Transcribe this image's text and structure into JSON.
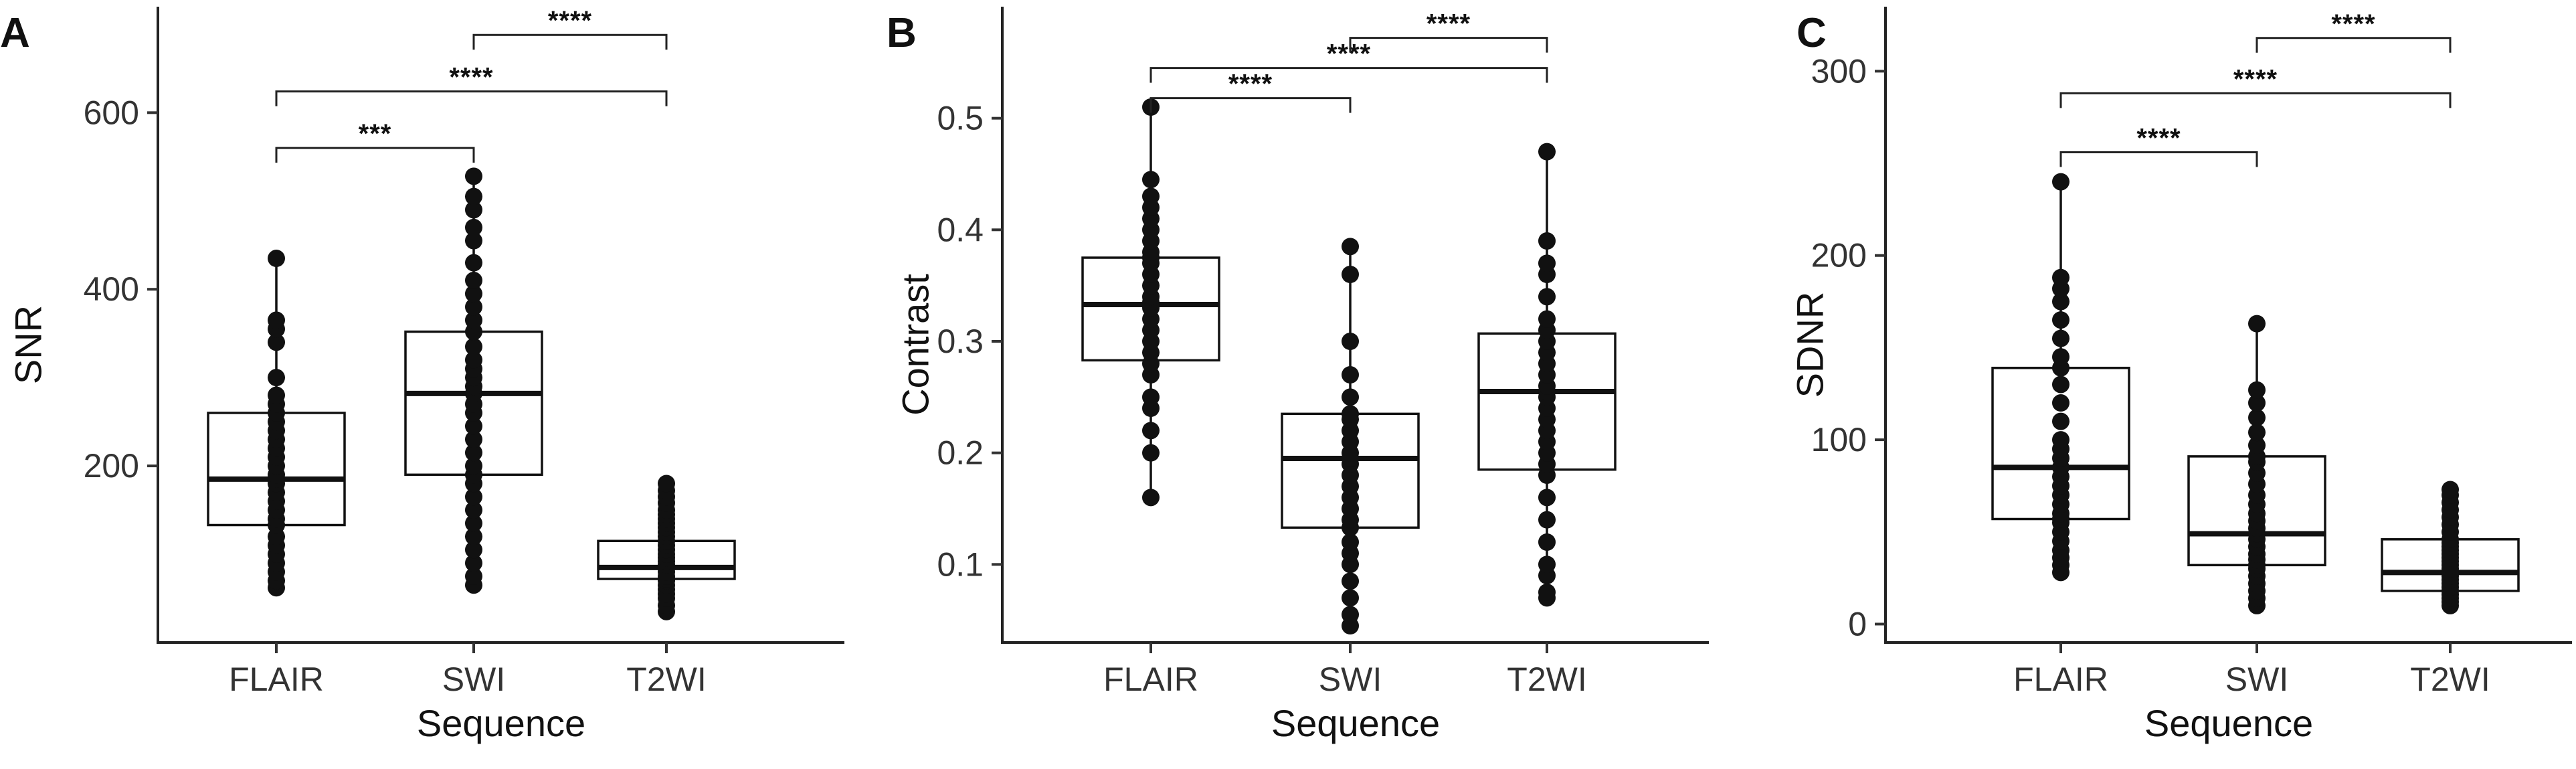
{
  "chart_data": [
    {
      "type": "box",
      "panel": "A",
      "xlabel": "Sequence",
      "ylabel": "SNR",
      "categories": [
        "FLAIR",
        "SWI",
        "T2WI"
      ],
      "ylim": [
        0,
        720
      ],
      "yticks": [
        200,
        400,
        600
      ],
      "boxes": [
        {
          "category": "FLAIR",
          "whisker_low": 62,
          "q1": 133,
          "median": 185,
          "q3": 260,
          "whisker_high": 435
        },
        {
          "category": "SWI",
          "whisker_low": 65,
          "q1": 190,
          "median": 282,
          "q3": 352,
          "whisker_high": 528
        },
        {
          "category": "T2WI",
          "whisker_low": 35,
          "q1": 72,
          "median": 85,
          "q3": 115,
          "whisker_high": 180
        }
      ],
      "points": [
        [
          62,
          70,
          80,
          90,
          100,
          110,
          120,
          133,
          140,
          150,
          160,
          170,
          180,
          185,
          190,
          200,
          210,
          220,
          230,
          240,
          250,
          260,
          270,
          280,
          300,
          340,
          355,
          365,
          435
        ],
        [
          65,
          75,
          90,
          105,
          120,
          135,
          150,
          165,
          180,
          190,
          200,
          215,
          230,
          245,
          260,
          270,
          282,
          290,
          300,
          310,
          320,
          335,
          352,
          365,
          380,
          395,
          410,
          430,
          455,
          470,
          490,
          505,
          528
        ],
        [
          35,
          42,
          50,
          55,
          60,
          65,
          70,
          72,
          75,
          80,
          85,
          88,
          92,
          96,
          100,
          105,
          110,
          115,
          120,
          125,
          130,
          135,
          140,
          145,
          150,
          158,
          165,
          172,
          180
        ]
      ],
      "significance": [
        {
          "from": "FLAIR",
          "to": "SWI",
          "y": 560,
          "label": "***"
        },
        {
          "from": "FLAIR",
          "to": "T2WI",
          "y": 624,
          "label": "****"
        },
        {
          "from": "SWI",
          "to": "T2WI",
          "y": 688,
          "label": "****"
        }
      ]
    },
    {
      "type": "box",
      "panel": "B",
      "xlabel": "Sequence",
      "ylabel": "Contrast",
      "categories": [
        "FLAIR",
        "SWI",
        "T2WI"
      ],
      "ylim": [
        0.03,
        0.6
      ],
      "yticks": [
        0.1,
        0.2,
        0.3,
        0.4,
        0.5
      ],
      "boxes": [
        {
          "category": "FLAIR",
          "whisker_low": 0.16,
          "q1": 0.283,
          "median": 0.333,
          "q3": 0.375,
          "whisker_high": 0.51
        },
        {
          "category": "SWI",
          "whisker_low": 0.045,
          "q1": 0.133,
          "median": 0.195,
          "q3": 0.235,
          "whisker_high": 0.385
        },
        {
          "category": "T2WI",
          "whisker_low": 0.07,
          "q1": 0.185,
          "median": 0.255,
          "q3": 0.307,
          "whisker_high": 0.47
        }
      ],
      "points": [
        [
          0.16,
          0.2,
          0.22,
          0.24,
          0.25,
          0.27,
          0.28,
          0.29,
          0.3,
          0.31,
          0.32,
          0.33,
          0.335,
          0.34,
          0.35,
          0.36,
          0.37,
          0.375,
          0.38,
          0.39,
          0.4,
          0.41,
          0.42,
          0.43,
          0.445,
          0.51
        ],
        [
          0.045,
          0.055,
          0.07,
          0.085,
          0.1,
          0.11,
          0.12,
          0.133,
          0.14,
          0.15,
          0.16,
          0.17,
          0.18,
          0.19,
          0.195,
          0.2,
          0.21,
          0.22,
          0.23,
          0.235,
          0.25,
          0.27,
          0.3,
          0.36,
          0.385
        ],
        [
          0.07,
          0.075,
          0.09,
          0.1,
          0.12,
          0.14,
          0.16,
          0.18,
          0.19,
          0.2,
          0.21,
          0.22,
          0.23,
          0.24,
          0.25,
          0.255,
          0.26,
          0.27,
          0.28,
          0.29,
          0.3,
          0.31,
          0.32,
          0.34,
          0.36,
          0.37,
          0.39,
          0.47
        ]
      ],
      "significance": [
        {
          "from": "FLAIR",
          "to": "SWI",
          "y": 0.518,
          "label": "****"
        },
        {
          "from": "FLAIR",
          "to": "T2WI",
          "y": 0.545,
          "label": "****"
        },
        {
          "from": "SWI",
          "to": "T2WI",
          "y": 0.572,
          "label": "****"
        }
      ]
    },
    {
      "type": "box",
      "panel": "C",
      "xlabel": "Sequence",
      "ylabel": "SDNR",
      "categories": [
        "FLAIR",
        "SWI",
        "T2WI"
      ],
      "ylim": [
        -10,
        335
      ],
      "yticks": [
        0,
        100,
        200,
        300
      ],
      "boxes": [
        {
          "category": "FLAIR",
          "whisker_low": 28,
          "q1": 57,
          "median": 85,
          "q3": 139,
          "whisker_high": 240
        },
        {
          "category": "SWI",
          "whisker_low": 10,
          "q1": 32,
          "median": 49,
          "q3": 91,
          "whisker_high": 163
        },
        {
          "category": "T2WI",
          "whisker_low": 10,
          "q1": 18,
          "median": 28,
          "q3": 46,
          "whisker_high": 73
        }
      ],
      "points": [
        [
          28,
          32,
          36,
          40,
          45,
          50,
          55,
          57,
          60,
          65,
          70,
          75,
          80,
          85,
          90,
          95,
          100,
          110,
          120,
          130,
          139,
          145,
          155,
          165,
          175,
          182,
          188,
          240
        ],
        [
          10,
          14,
          18,
          22,
          26,
          30,
          32,
          35,
          38,
          42,
          46,
          49,
          52,
          56,
          60,
          65,
          70,
          76,
          82,
          88,
          91,
          97,
          104,
          112,
          120,
          127,
          163
        ],
        [
          10,
          12,
          14,
          16,
          18,
          20,
          22,
          24,
          26,
          28,
          30,
          32,
          34,
          36,
          38,
          40,
          42,
          44,
          46,
          50,
          54,
          58,
          62,
          66,
          70,
          73
        ]
      ],
      "significance": [
        {
          "from": "FLAIR",
          "to": "SWI",
          "y": 256,
          "label": "****"
        },
        {
          "from": "FLAIR",
          "to": "T2WI",
          "y": 288,
          "label": "****"
        },
        {
          "from": "SWI",
          "to": "T2WI",
          "y": 318,
          "label": "****"
        }
      ]
    }
  ]
}
